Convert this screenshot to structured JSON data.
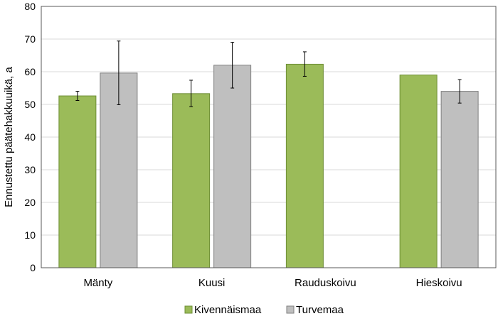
{
  "chart_data": {
    "type": "bar",
    "title": "",
    "xlabel": "",
    "ylabel": "Ennustettu päätehakkuuikä, a",
    "ylim": [
      0,
      80
    ],
    "yticks": [
      0,
      10,
      20,
      30,
      40,
      50,
      60,
      70,
      80
    ],
    "grid": true,
    "legend_position": "bottom",
    "categories": [
      "Mänty",
      "Kuusi",
      "Rauduskoivu",
      "Hieskoivu"
    ],
    "series": [
      {
        "name": "Kivennäismaa",
        "color": "#9bbb59",
        "values": [
          52.6,
          53.3,
          62.3,
          59.0
        ],
        "error_low": [
          51.2,
          49.3,
          58.6,
          null
        ],
        "error_high": [
          54.0,
          57.4,
          66.1,
          null
        ]
      },
      {
        "name": "Turvemaa",
        "color": "#bfbfbf",
        "values": [
          59.6,
          62.0,
          null,
          54.0
        ],
        "error_low": [
          49.9,
          55.0,
          null,
          50.4
        ],
        "error_high": [
          69.4,
          69.0,
          null,
          57.6
        ]
      }
    ]
  }
}
